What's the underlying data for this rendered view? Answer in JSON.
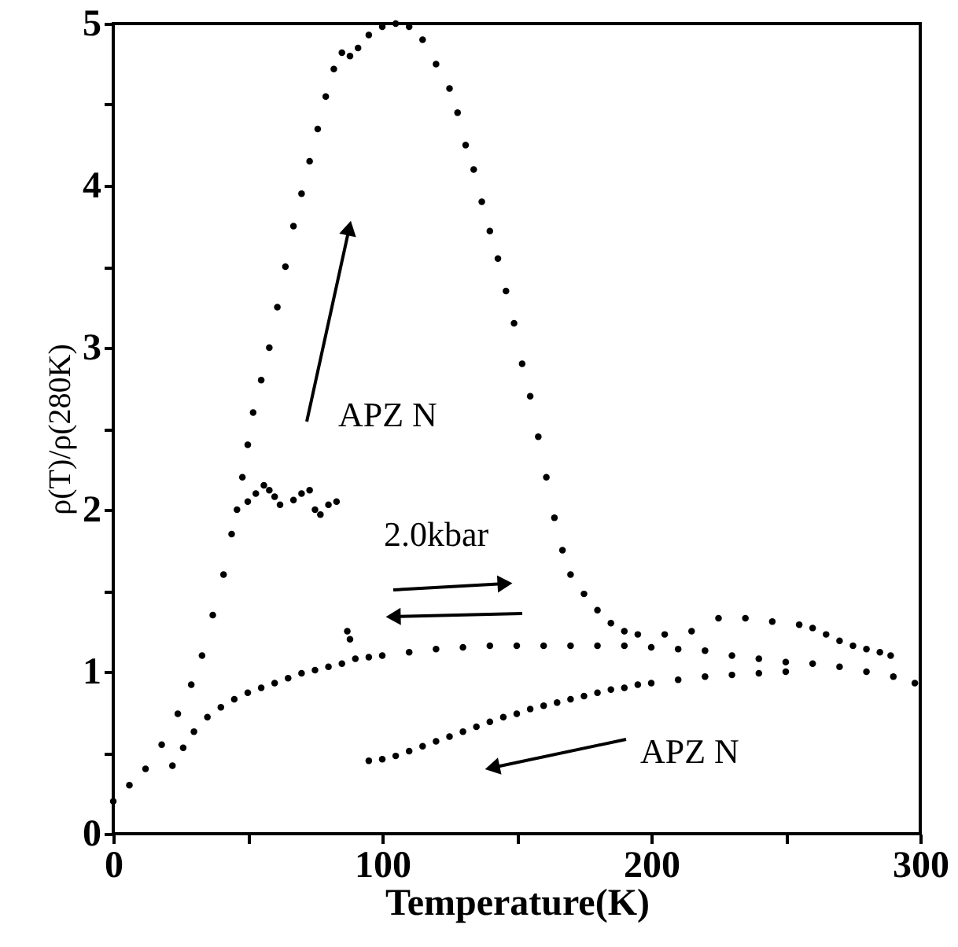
{
  "chart_data": {
    "type": "scatter",
    "xlabel": "Temperature(K)",
    "ylabel": "ρ(T)/ρ(280K)",
    "xlim": [
      0,
      300
    ],
    "ylim": [
      0,
      5
    ],
    "xticks": [
      0,
      {
        "value": 50,
        "label": null
      },
      100,
      {
        "value": 150,
        "label": null
      },
      200,
      {
        "value": 250,
        "label": null
      },
      300
    ],
    "yticks": [
      0,
      {
        "value": 0.5,
        "label": null
      },
      1,
      {
        "value": 1.5,
        "label": null
      },
      2,
      {
        "value": 2.5,
        "label": null
      },
      3,
      {
        "value": 3.5,
        "label": null
      },
      4,
      {
        "value": 4.5,
        "label": null
      },
      5
    ],
    "grid": false,
    "marker": "circle",
    "series": [
      {
        "color": "#000000",
        "x": [
          0,
          6,
          12,
          18,
          24,
          29,
          33,
          37,
          41,
          44,
          46,
          48,
          50,
          52,
          55,
          58,
          61,
          64,
          67,
          70,
          73,
          76,
          79,
          82,
          85,
          88,
          91,
          95,
          100,
          105,
          110,
          115,
          120,
          125,
          128,
          131,
          134,
          137,
          140,
          143,
          146,
          149,
          152,
          155,
          158,
          161,
          164,
          167,
          170,
          175,
          180,
          185,
          190,
          195,
          205,
          215,
          225,
          235,
          245,
          255,
          260,
          265,
          270,
          275,
          280,
          285,
          289
        ],
        "values": [
          0.2,
          0.3,
          0.4,
          0.55,
          0.74,
          0.92,
          1.1,
          1.35,
          1.6,
          1.85,
          2.0,
          2.2,
          2.4,
          2.6,
          2.8,
          3.0,
          3.25,
          3.5,
          3.75,
          3.95,
          4.15,
          4.35,
          4.55,
          4.72,
          4.82,
          4.8,
          4.85,
          4.93,
          4.98,
          5.0,
          4.98,
          4.9,
          4.75,
          4.6,
          4.45,
          4.25,
          4.1,
          3.9,
          3.72,
          3.55,
          3.35,
          3.15,
          2.9,
          2.7,
          2.45,
          2.2,
          1.95,
          1.75,
          1.6,
          1.48,
          1.38,
          1.3,
          1.25,
          1.23,
          1.23,
          1.25,
          1.33,
          1.33,
          1.31,
          1.29,
          1.27,
          1.23,
          1.19,
          1.16,
          1.14,
          1.12,
          1.1
        ]
      },
      {
        "color": "#000000",
        "x": [
          50,
          53,
          56,
          58,
          60,
          62,
          67,
          70,
          73,
          75,
          77,
          80,
          83,
          87,
          88
        ],
        "values": [
          2.05,
          2.1,
          2.15,
          2.12,
          2.08,
          2.03,
          2.06,
          2.1,
          2.12,
          2.0,
          1.97,
          2.03,
          2.05,
          1.25,
          1.2
        ]
      },
      {
        "color": "#000000",
        "x": [
          22,
          26,
          30,
          35,
          40,
          45,
          50,
          55,
          60,
          65,
          70,
          75,
          80,
          85,
          90,
          95,
          100,
          110,
          120,
          130,
          140,
          150,
          160,
          170,
          180,
          190,
          200,
          210,
          220,
          230,
          240,
          250,
          260,
          270,
          280,
          290,
          298
        ],
        "values": [
          0.42,
          0.53,
          0.63,
          0.72,
          0.78,
          0.83,
          0.87,
          0.9,
          0.93,
          0.96,
          0.99,
          1.01,
          1.03,
          1.05,
          1.08,
          1.09,
          1.1,
          1.12,
          1.14,
          1.15,
          1.16,
          1.16,
          1.16,
          1.16,
          1.16,
          1.16,
          1.15,
          1.14,
          1.13,
          1.1,
          1.08,
          1.06,
          1.05,
          1.03,
          1.0,
          0.97,
          0.93
        ]
      },
      {
        "color": "#000000",
        "x": [
          95,
          100,
          105,
          110,
          115,
          120,
          125,
          130,
          135,
          140,
          145,
          150,
          155,
          160,
          165,
          170,
          175,
          180,
          185,
          190,
          195,
          200,
          210,
          220,
          230,
          240,
          250
        ],
        "values": [
          0.45,
          0.46,
          0.48,
          0.51,
          0.54,
          0.57,
          0.6,
          0.63,
          0.66,
          0.69,
          0.72,
          0.74,
          0.77,
          0.79,
          0.81,
          0.83,
          0.85,
          0.87,
          0.89,
          0.9,
          0.92,
          0.93,
          0.95,
          0.97,
          0.98,
          0.99,
          1.0
        ]
      }
    ],
    "annotations": [
      "APZ N",
      "2.0kbar",
      "APZ N"
    ]
  }
}
